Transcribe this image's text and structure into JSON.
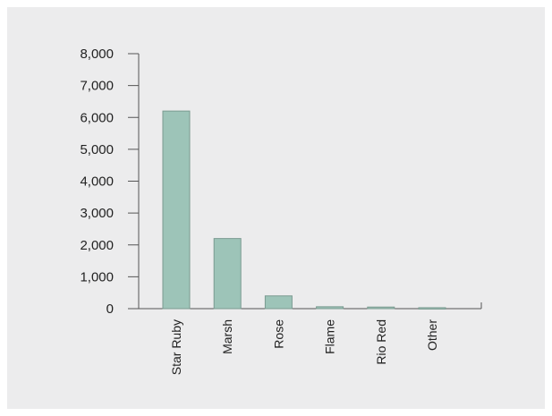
{
  "chart_data": {
    "type": "bar",
    "title": "",
    "xlabel": "",
    "ylabel": "",
    "categories": [
      "Star Ruby",
      "Marsh",
      "Rose",
      "Flame",
      "Rio Red",
      "Other"
    ],
    "values": [
      6200,
      2200,
      400,
      60,
      50,
      30
    ],
    "ylim": [
      0,
      8000
    ],
    "yticks": [
      "0",
      "1,000",
      "2,000",
      "3,000",
      "4,000",
      "5,000",
      "6,000",
      "7,000",
      "8,000"
    ],
    "grid": false,
    "legend": "none",
    "colors": {
      "bar_fill": "#9dc4b8",
      "bar_stroke": "#7a9a90",
      "axis": "#555555",
      "background": "#ececed"
    }
  }
}
